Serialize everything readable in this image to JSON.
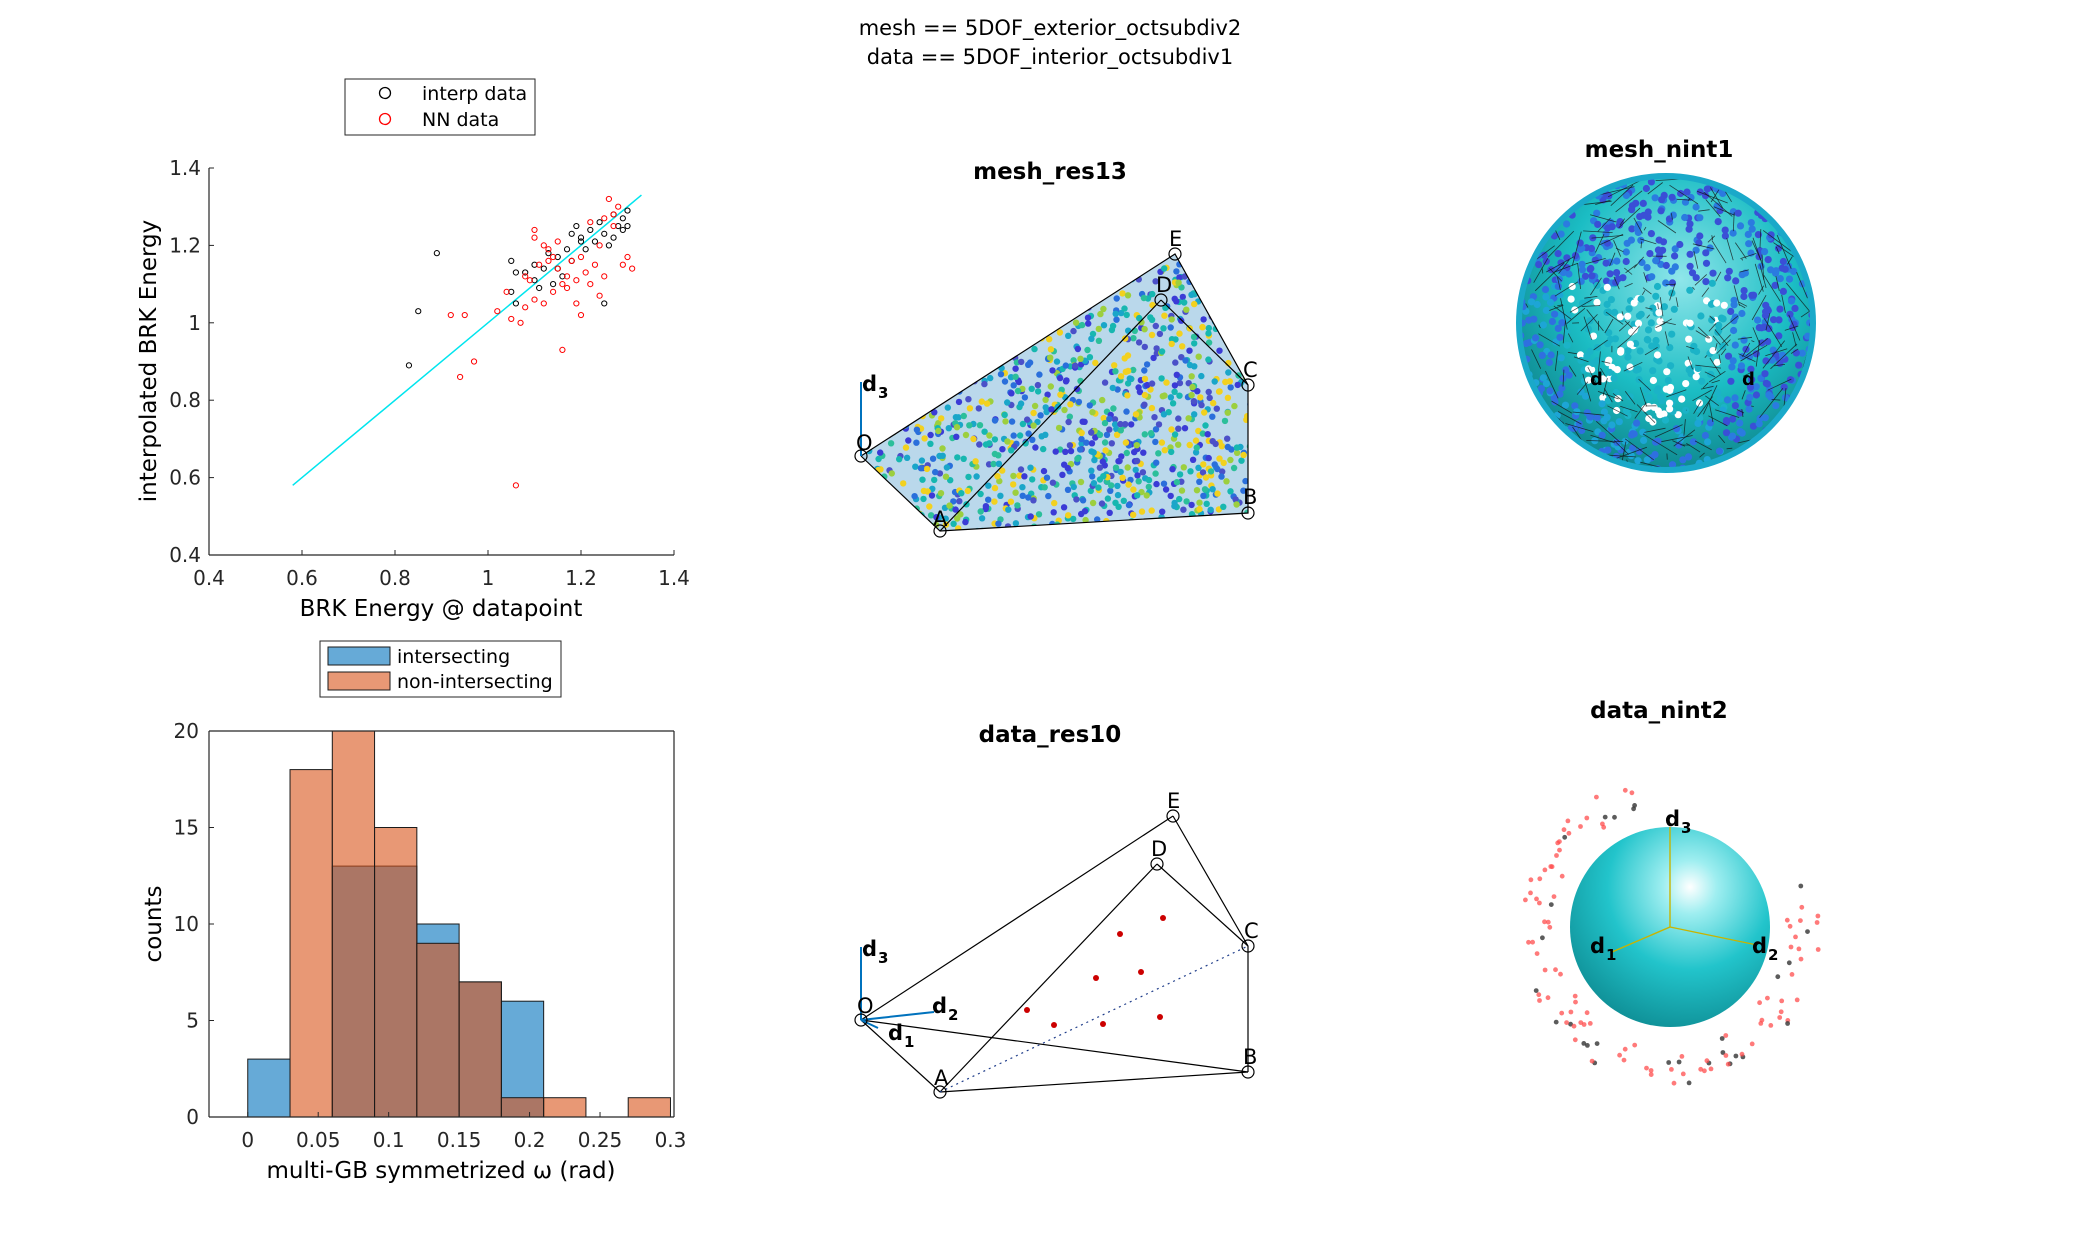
{
  "suptitle": {
    "line1": "mesh == 5DOF_exterior_octsubdiv2",
    "line2": "data == 5DOF_interior_octsubdiv1"
  },
  "colors": {
    "interp": "#000000",
    "nn": "#ff0000",
    "fit_line": "#00e5ee",
    "intersecting": "#0072bd",
    "non_intersecting": "#d95319",
    "sphere": "#1bbdc4"
  },
  "panels": {
    "mesh_res": {
      "title": "mesh_res13",
      "labels": [
        "O",
        "A",
        "B",
        "C",
        "D",
        "E"
      ],
      "axis": "d3"
    },
    "mesh_nint": {
      "title": "mesh_nint1",
      "labels": [
        "d",
        "d"
      ]
    },
    "data_res": {
      "title": "data_res10",
      "labels": [
        "O",
        "A",
        "B",
        "C",
        "D",
        "E"
      ],
      "axes": [
        "d1",
        "d2",
        "d3"
      ]
    },
    "data_nint": {
      "title": "data_nint2",
      "axes": [
        "d1",
        "d2",
        "d3"
      ]
    }
  },
  "chart_data": [
    {
      "type": "scatter",
      "xlabel": "BRK Energy @ datapoint",
      "ylabel": "interpolated BRK Energy",
      "xlim": [
        0.4,
        1.4
      ],
      "ylim": [
        0.4,
        1.4
      ],
      "xticks": [
        "0.4",
        "0.6",
        "0.8",
        "1",
        "1.2",
        "1.4"
      ],
      "yticks": [
        "0.4",
        "0.6",
        "0.8",
        "1",
        "1.2",
        "1.4"
      ],
      "grid": false,
      "legend_position": "top",
      "fit_line": {
        "x": [
          0.58,
          1.33
        ],
        "y": [
          0.58,
          1.33
        ]
      },
      "series": [
        {
          "name": "interp data",
          "marker": "open-circle",
          "x": [
            0.83,
            0.89,
            0.85,
            1.05,
            1.06,
            1.05,
            1.08,
            1.1,
            1.12,
            1.14,
            1.15,
            1.16,
            1.17,
            1.18,
            1.19,
            1.2,
            1.21,
            1.22,
            1.23,
            1.24,
            1.25,
            1.26,
            1.27,
            1.28,
            1.29,
            1.3,
            1.3,
            1.11,
            1.13,
            1.15,
            1.18,
            1.2,
            1.25,
            1.27,
            1.29,
            1.06,
            1.1
          ],
          "y": [
            0.89,
            1.18,
            1.03,
            1.16,
            1.05,
            1.08,
            1.13,
            1.11,
            1.14,
            1.1,
            1.17,
            1.12,
            1.19,
            1.16,
            1.25,
            1.22,
            1.19,
            1.24,
            1.21,
            1.26,
            1.23,
            1.2,
            1.28,
            1.25,
            1.27,
            1.25,
            1.29,
            1.09,
            1.18,
            1.14,
            1.23,
            1.21,
            1.05,
            1.22,
            1.24,
            1.13,
            1.15
          ]
        },
        {
          "name": "NN data",
          "marker": "open-circle",
          "x": [
            0.92,
            0.94,
            0.95,
            0.97,
            1.02,
            1.04,
            1.06,
            1.07,
            1.08,
            1.09,
            1.1,
            1.11,
            1.12,
            1.13,
            1.14,
            1.15,
            1.16,
            1.17,
            1.18,
            1.19,
            1.2,
            1.21,
            1.22,
            1.23,
            1.24,
            1.25,
            1.26,
            1.27,
            1.28,
            1.29,
            1.3,
            1.31,
            1.05,
            1.1,
            1.15,
            1.2,
            1.25,
            1.27,
            1.16,
            1.13,
            1.1,
            1.12,
            1.17,
            1.22,
            1.24,
            1.08,
            1.14,
            1.19
          ],
          "y": [
            1.02,
            0.86,
            1.02,
            0.9,
            1.03,
            1.08,
            0.58,
            1.0,
            1.04,
            1.11,
            1.24,
            1.15,
            1.2,
            1.16,
            1.08,
            1.21,
            0.93,
            1.12,
            1.16,
            1.05,
            1.17,
            1.13,
            1.1,
            1.15,
            1.2,
            1.27,
            1.32,
            1.25,
            1.3,
            1.15,
            1.17,
            1.14,
            1.01,
            1.06,
            1.14,
            1.02,
            1.12,
            1.28,
            1.1,
            1.19,
            1.22,
            1.05,
            1.09,
            1.26,
            1.07,
            1.12,
            1.17,
            1.11
          ]
        }
      ]
    },
    {
      "type": "bar",
      "subtype": "histogram",
      "xlabel": "multi-GB symmetrized ω (rad)",
      "ylabel": "counts",
      "xlim": [
        -0.0275,
        0.3025
      ],
      "ylim": [
        0,
        20
      ],
      "xticks": [
        "0",
        "0.05",
        "0.1",
        "0.15",
        "0.2",
        "0.25",
        "0.3"
      ],
      "yticks": [
        "0",
        "5",
        "10",
        "15",
        "20"
      ],
      "grid": false,
      "legend_position": "top",
      "bin_edges": [
        0.0,
        0.03,
        0.06,
        0.09,
        0.12,
        0.15,
        0.18,
        0.21,
        0.24,
        0.27,
        0.3
      ],
      "series": [
        {
          "name": "intersecting",
          "values": [
            3,
            0,
            13,
            13,
            10,
            7,
            6,
            0,
            0,
            0
          ]
        },
        {
          "name": "non-intersecting",
          "values": [
            0,
            18,
            20,
            15,
            9,
            7,
            1,
            1,
            0,
            1
          ]
        }
      ]
    }
  ]
}
